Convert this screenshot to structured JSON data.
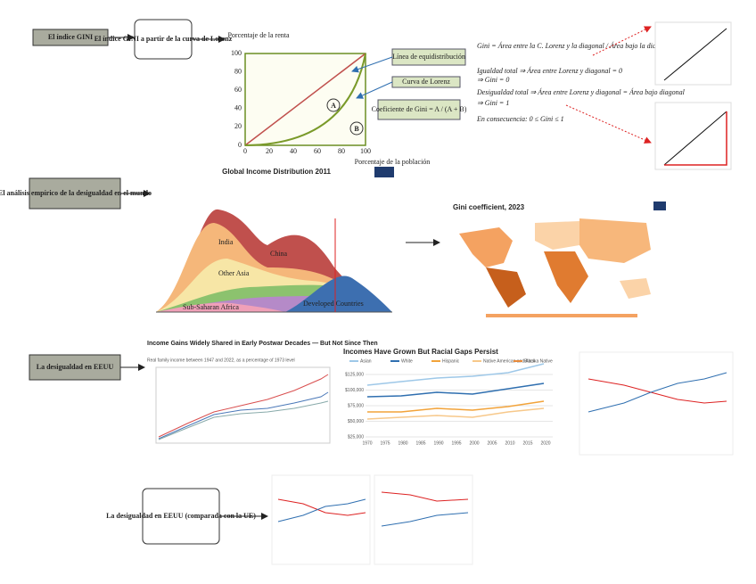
{
  "boxes": [
    "El índice GINI",
    "El índice GINI a partir de la curva de Lorenz",
    "El análisis empírico de la desigualdad en el mundo",
    "La desigualdad en EEUU",
    "La desigualdad en EEUU (comparada con la UE)"
  ],
  "lorenz": {
    "y_label": "Porcentaje de la renta",
    "x_label": "Porcentaje de la población",
    "ticks": [
      0,
      20,
      40,
      60,
      80,
      100
    ],
    "equality_label": "Línea de equidistribución",
    "curve_label": "Curva de Lorenz",
    "gini_label": "Coeficiente de Gini = A / (A + B)",
    "area_a": "A",
    "area_b": "B"
  },
  "formulas": [
    "Gini = Área entre la C. Lorenz y la diagonal / Área bajo la diagonal",
    "Igualdad total ⇒ Área entre Lorenz y diagonal = 0",
    "⇒ Gini = 0",
    "Desigualdad total ⇒ Área entre Lorenz y diagonal = Área bajo diagonal",
    "⇒ Gini = 1",
    "En consecuencia: 0 ≤ Gini ≤ 1"
  ],
  "global_income": {
    "title": "Global Income Distribution 2011",
    "regions": [
      "India",
      "China",
      "Other Asia",
      "Sub-Saharan Africa",
      "Developed Countries"
    ]
  },
  "gini_map": {
    "title": "Gini coefficient, 2023"
  },
  "us_gains": {
    "title": "Income Gains Widely Shared in Early Postwar Decades — But Not Since Then",
    "subtitle": "Real family income between 1947 and 2022, as a percentage of 1973 level"
  },
  "racial_gaps": {
    "title": "Incomes Have Grown But Racial Gaps Persist",
    "legend": [
      "Asian",
      "White",
      "Hispanic",
      "Native American and Alaska Native",
      "Black"
    ],
    "yticks": [
      "$125,000",
      "$100,000",
      "$75,000",
      "$50,000",
      "$25,000"
    ],
    "xticks": [
      "1970",
      "1975",
      "1980",
      "1985",
      "1990",
      "1995",
      "2000",
      "2005",
      "2010",
      "2015",
      "2020"
    ]
  }
}
